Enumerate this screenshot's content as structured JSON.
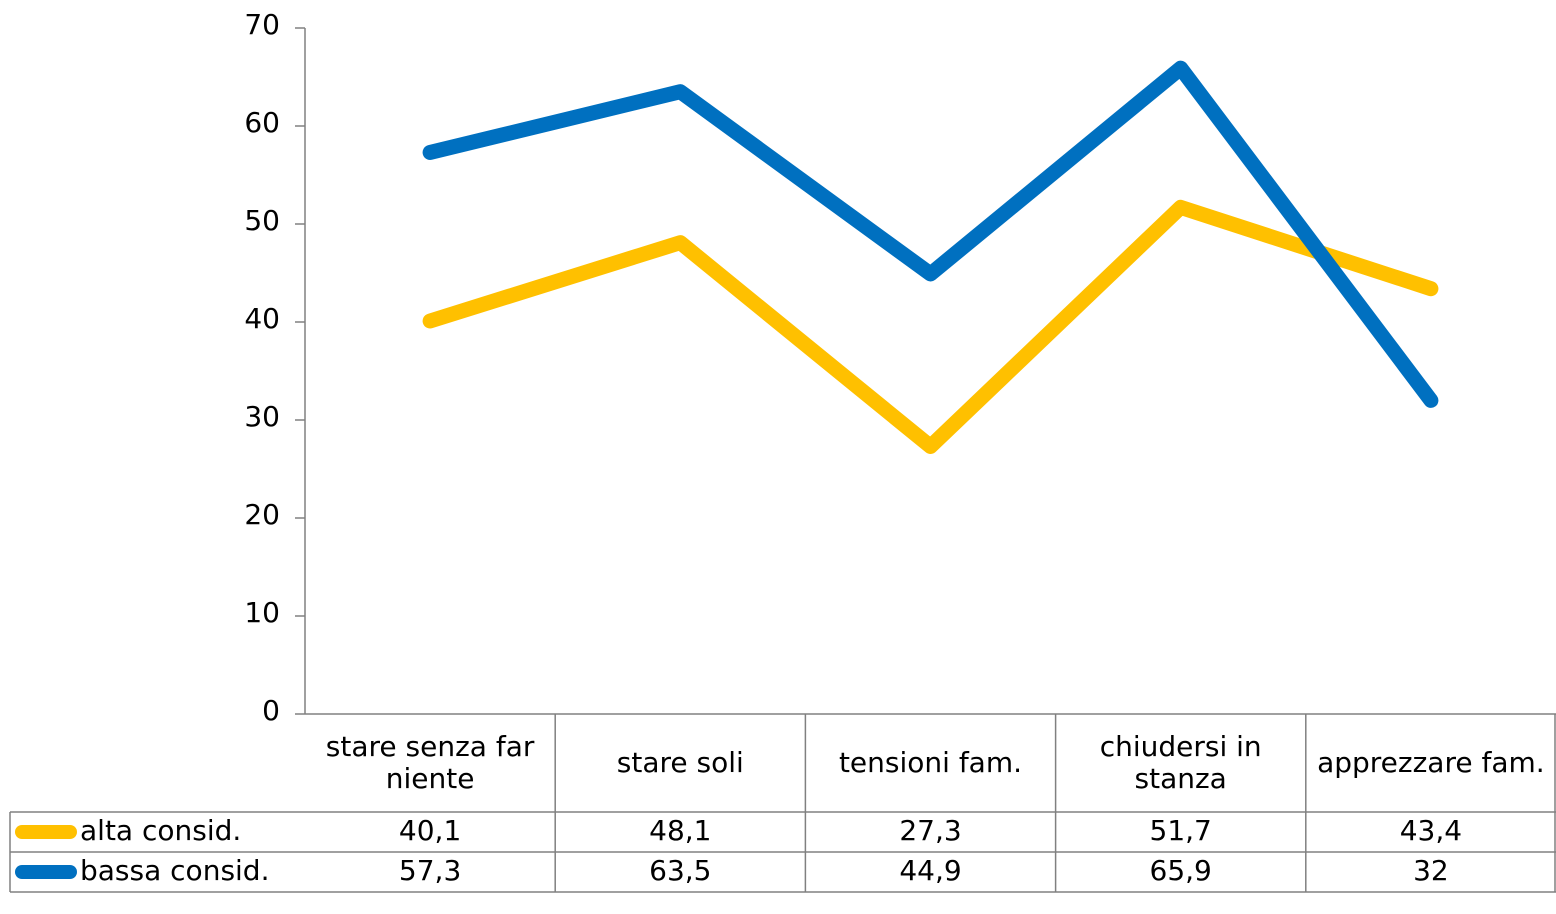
{
  "chart_data": {
    "type": "line",
    "categories": [
      "stare senza far niente",
      "stare soli",
      "tensioni fam.",
      "chiudersi in stanza",
      "apprezzare fam."
    ],
    "series": [
      {
        "name": "alta consid.",
        "color": "#FFC000",
        "values": [
          40.1,
          48.1,
          27.3,
          51.7,
          43.4
        ],
        "value_labels": [
          "40,1",
          "48,1",
          "27,3",
          "51,7",
          "43,4"
        ]
      },
      {
        "name": "bassa consid.",
        "color": "#0070C0",
        "values": [
          57.3,
          63.5,
          44.9,
          65.9,
          32
        ],
        "value_labels": [
          "57,3",
          "63,5",
          "44,9",
          "65,9",
          "32"
        ]
      }
    ],
    "ylim": [
      0,
      70
    ],
    "yticks": [
      0,
      10,
      20,
      30,
      40,
      50,
      60,
      70
    ],
    "data_table": true
  }
}
